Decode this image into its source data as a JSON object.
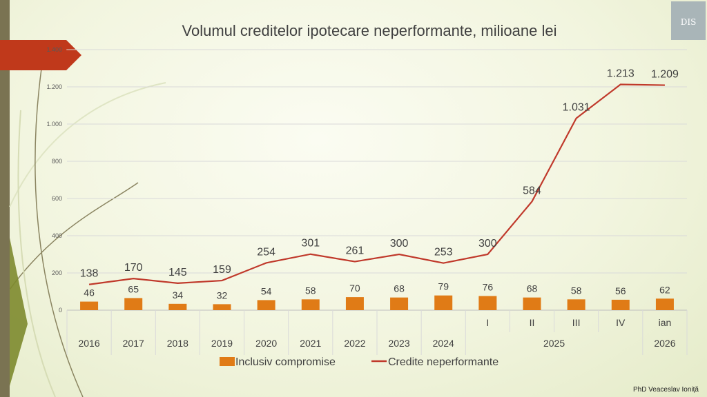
{
  "chart_data": {
    "type": "bar+line",
    "title": "Volumul creditelor ipotecare neperformante, milioane lei",
    "categories": [
      "2016",
      "2017",
      "2018",
      "2019",
      "2020",
      "2021",
      "2022",
      "2023",
      "2024",
      "I",
      "II",
      "III",
      "IV",
      "ian"
    ],
    "groups": [
      {
        "label": "2025",
        "categories": [
          "I",
          "II",
          "III",
          "IV"
        ]
      },
      {
        "label": "2026",
        "categories": [
          "ian"
        ]
      }
    ],
    "series": [
      {
        "name": "Inclusiv compromise",
        "type": "bar",
        "color": "#e07b16",
        "values": [
          46,
          65,
          34,
          32,
          54,
          58,
          70,
          68,
          79,
          76,
          68,
          58,
          56,
          62
        ],
        "labels": [
          "46",
          "65",
          "34",
          "32",
          "54",
          "58",
          "70",
          "68",
          "79",
          "76",
          "68",
          "58",
          "56",
          "62"
        ]
      },
      {
        "name": "Credite neperformante",
        "type": "line",
        "color": "#c0392b",
        "values": [
          138,
          170,
          145,
          159,
          254,
          301,
          261,
          300,
          253,
          300,
          584,
          1031,
          1213,
          1209
        ],
        "labels": [
          "138",
          "170",
          "145",
          "159",
          "254",
          "301",
          "261",
          "300",
          "253",
          "300",
          "584",
          "1.031",
          "1.213",
          "1.209"
        ]
      }
    ],
    "yaxis": {
      "min": 0,
      "max": 1400,
      "ticks": [
        0,
        200,
        400,
        600,
        800,
        1000,
        1200,
        1400
      ],
      "tick_labels": [
        "0",
        "200",
        "400",
        "600",
        "800",
        "1.000",
        "1.200",
        "1.400"
      ]
    },
    "grid": true,
    "legend": "bottom"
  },
  "footer": {
    "author": "PhD Veaceslav Ioniță"
  },
  "logo": {
    "text": "DIS"
  }
}
